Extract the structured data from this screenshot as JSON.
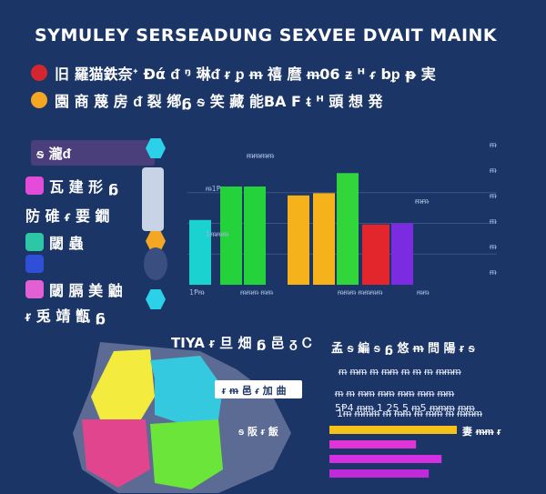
{
  "title": "SYMULEY SERSEADUNG SEXVEE DVAIT MAINK",
  "header_rows": [
    {
      "text": "旧 羅猫鉄奈ᐩ Ðά  ᵭ ᵑ 琳ᵭ ᵲ ᵱ ᵯ 禧 麿 ᵯ06 ᵶ ᵸ ᵳ bᵱ ᵽ 実",
      "color": "#d3262e"
    },
    {
      "text": "園 商 蔑 房  ᵭ 裂 鄕ᵷ ᵴ 笑 藏 能BA F ᵵ ᵸ 頭 想 発",
      "color": "#f5a623"
    }
  ],
  "panel_legend": {
    "badge": "ᵴ 瀧ᵭ",
    "items": [
      {
        "text": "瓦 建 形 ᵷ",
        "color": "#e34bd8"
      },
      {
        "text": "防 碓 ᵳ 要 鐗",
        "color": ""
      },
      {
        "text": "閾 蟲",
        "color": "#2ec7a6"
      },
      {
        "text": "",
        "color": "#2e4fd6"
      },
      {
        "text": "閾 膈 美 鼬",
        "color": "#e35fd4"
      },
      {
        "text": "ᵲ 兎 靖 甑 ᵷ",
        "color": ""
      }
    ]
  },
  "chart_data": {
    "type": "bar",
    "categories": [
      "",
      "",
      "",
      "",
      "",
      "",
      "",
      ""
    ],
    "values": [
      58,
      88,
      88,
      80,
      82,
      100,
      54,
      55
    ],
    "colors": [
      "#1ad3d1",
      "#24d23c",
      "#24d23c",
      "#f5b21a",
      "#f5b21a",
      "#30d63a",
      "#e3262b",
      "#7b2be0"
    ],
    "ylim": [
      0,
      110
    ],
    "tick_labels_left": [
      "ᵯ1Ᵽ",
      "1ᵯᵯᵯ",
      "ᵯᵯᵯᵯ",
      "ᵯᵯ"
    ],
    "x_labels": [
      "1Ᵽᵯ",
      "ᵯᵯᵯ ᵯᵯ",
      "ᵯᵯᵯ ᵯᵯᵯᵯ",
      "ᵯᵯ"
    ],
    "right_labels": [
      "ᵯ",
      "ᵯ",
      "ᵯ",
      "ᵯ",
      "ᵯ",
      "ᵯ"
    ],
    "grid": true
  },
  "map": {
    "title": "TIYA ᵲ 旦 畑 ᵷ 邑 ᵹ Ꮯ",
    "label1": "ᵲ ᵯ 邑 ᵳ 加 曲",
    "label2": "ᵴ 阪 ᵲ 飯",
    "regions": [
      "#f3ec3e",
      "#35c9e0",
      "#e0458e",
      "#6ce53a"
    ]
  },
  "bars_right": {
    "head": "孟 ᵴ 編 ᵴ ᵷ 悠 ᵯ 問 陽 ᵲ ᵴ",
    "lines": [
      "ᵯ ᵯᵯ ᵯ ᵯᵯ ᵯ ᵯ ᵯ ᵯᵯᵯ",
      "ᵯ ᵯ ᵯᵯ ᵯᵯ ᵯᵯ ᵯᵯ ᵯᵯ",
      "1ᵯ ᵯᵯᵯ ᵯ ᵯᵯ ᵯ ᵯᵯ ᵯ ᵯᵯᵯ",
      "5Ᵽ4 ᵯᵯ.1 25 5 ᵯ5 ᵯᵯᵯ ᵯᵯ"
    ],
    "side_label": "妻 ᵯᵯ ᵲ",
    "values": [
      100,
      68,
      88,
      78
    ],
    "colors": [
      "#f5c21a",
      "#e035d6",
      "#d230e0",
      "#c02ad8"
    ]
  }
}
